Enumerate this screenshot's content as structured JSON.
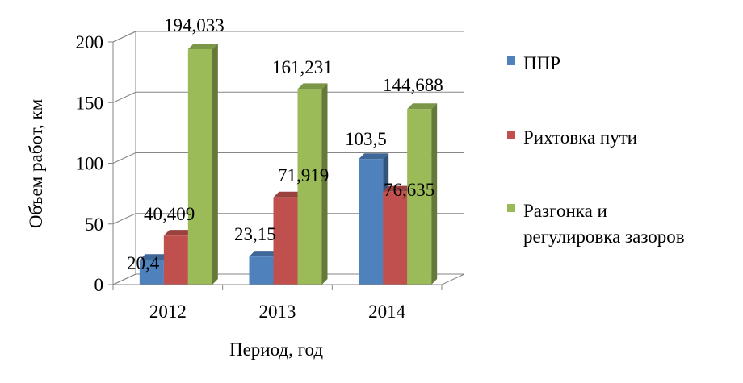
{
  "chart_data": {
    "type": "bar",
    "title": "",
    "xlabel": "Период, год",
    "ylabel": "Объем работ, км",
    "categories": [
      "2012",
      "2013",
      "2014"
    ],
    "ylim": [
      0,
      200
    ],
    "yticks": [
      0,
      50,
      100,
      150,
      200
    ],
    "ytick_labels": [
      "0",
      "50",
      "100",
      "150",
      "200"
    ],
    "grid": true,
    "legend_position": "right",
    "style": "3d-clustered-column",
    "series": [
      {
        "name": "ППР",
        "values": [
          20.4,
          23.15,
          103.5
        ],
        "labels": [
          "20,4",
          "23,15",
          "103,5"
        ],
        "color": "#4F81BD"
      },
      {
        "name": "Рихтовка пути",
        "values": [
          40.409,
          71.919,
          76.635
        ],
        "labels": [
          "40,409",
          "71,919",
          "76,635"
        ],
        "color": "#C0504D"
      },
      {
        "name": "Разгонка и регулировка зазоров",
        "legend_lines": [
          "Разгонка и",
          "регулировка зазоров"
        ],
        "values": [
          194.033,
          161.231,
          144.688
        ],
        "labels": [
          "194,033",
          "161,231",
          "144,688"
        ],
        "color": "#9BBB59"
      }
    ]
  }
}
